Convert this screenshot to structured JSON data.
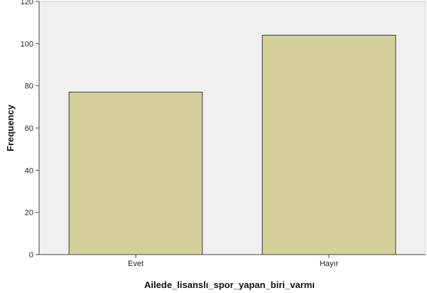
{
  "chart_data": {
    "type": "bar",
    "title": "",
    "xlabel": "Ailede_lisanslı_spor_yapan_biri_varmı",
    "ylabel": "Frequency",
    "categories": [
      "Evet",
      "Hayır"
    ],
    "values": [
      77,
      104
    ],
    "ylim": [
      0,
      120
    ],
    "yticks": [
      0,
      20,
      40,
      60,
      80,
      100,
      120
    ],
    "grid": false,
    "legend": "none",
    "colors": {
      "bar_fill": "#d4cf9b",
      "bar_stroke": "#3d3d3d",
      "plot_background": "#f0f0f0",
      "axis": "#444444"
    }
  }
}
